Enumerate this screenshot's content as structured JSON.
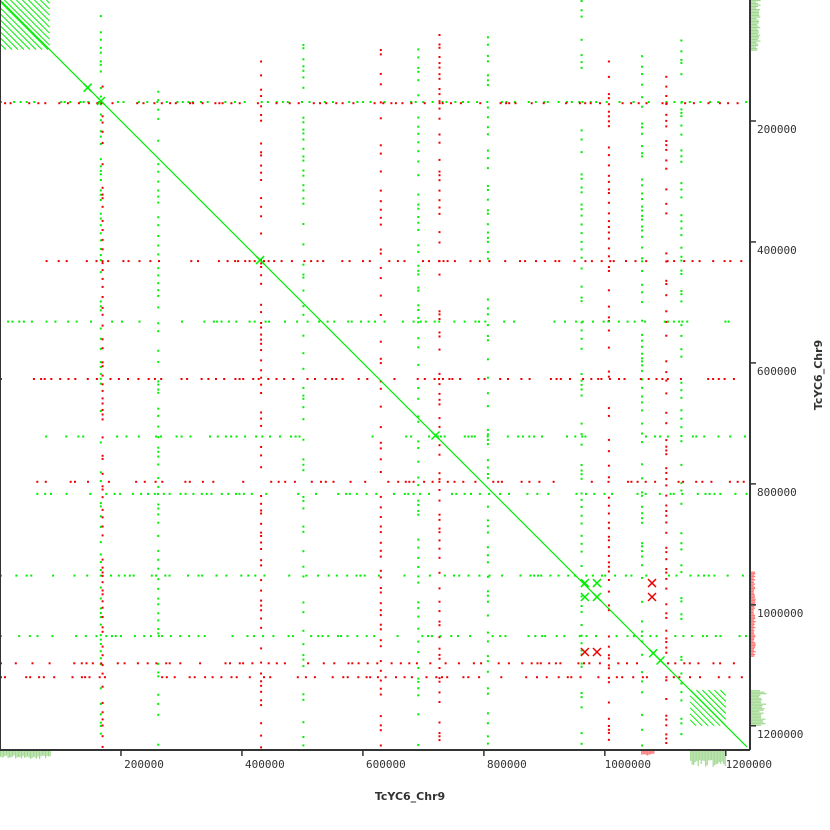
{
  "chart_data": {
    "type": "scatter",
    "subtype": "dot-plot self alignment",
    "xlabel": "TcYC6_Chr9",
    "ylabel": "TcYC6_Chr9",
    "xlim": [
      0,
      1240000
    ],
    "ylim": [
      0,
      1240000
    ],
    "y_inverted": true,
    "xticks": [
      "200000",
      "400000",
      "600000",
      "800000",
      "1000000",
      "1200000"
    ],
    "yticks": [
      "200000",
      "400000",
      "600000",
      "800000",
      "1000000",
      "1200000"
    ],
    "tick_values": [
      200000,
      400000,
      600000,
      800000,
      1000000,
      1200000
    ],
    "colors": {
      "forward": "#00ee00",
      "reverse": "#ee0000",
      "hist_forward": "#a0d890",
      "hist_reverse": "#ff7070",
      "axis": "#333333"
    },
    "diagonal": [
      0,
      0,
      1235000,
      1235000
    ],
    "repeat_blocks": [
      {
        "x": [
          0,
          82000
        ],
        "y": [
          0,
          82000
        ],
        "color": "forward"
      },
      {
        "x": [
          1141000,
          1200000
        ],
        "y": [
          1141000,
          1200000
        ],
        "color": "forward"
      }
    ],
    "clusters": [
      {
        "x": 967000,
        "y": 964000,
        "color": "forward"
      },
      {
        "x": 987000,
        "y": 964000,
        "color": "forward"
      },
      {
        "x": 967000,
        "y": 987000,
        "color": "forward"
      },
      {
        "x": 987000,
        "y": 987000,
        "color": "forward"
      },
      {
        "x": 967000,
        "y": 1078000,
        "color": "reverse"
      },
      {
        "x": 987000,
        "y": 1078000,
        "color": "reverse"
      },
      {
        "x": 1078000,
        "y": 964000,
        "color": "reverse"
      },
      {
        "x": 1078000,
        "y": 987000,
        "color": "reverse"
      },
      {
        "x": 145000,
        "y": 145000,
        "color": "forward"
      },
      {
        "x": 167000,
        "y": 167000,
        "color": "forward"
      },
      {
        "x": 430000,
        "y": 430000,
        "color": "forward"
      },
      {
        "x": 720000,
        "y": 720000,
        "color": "forward"
      },
      {
        "x": 1080000,
        "y": 1080000,
        "color": "forward"
      },
      {
        "x": 1092000,
        "y": 1092000,
        "color": "forward"
      }
    ],
    "dotted_tracks": [
      {
        "axis": "v",
        "at": 165000,
        "from": 0,
        "to": 1235000,
        "color": "forward"
      },
      {
        "axis": "v",
        "at": 168000,
        "from": 130000,
        "to": 1235000,
        "color": "reverse"
      },
      {
        "axis": "h",
        "at": 167000,
        "from": 0,
        "to": 1235000,
        "color": "forward"
      },
      {
        "axis": "h",
        "at": 169000,
        "from": 0,
        "to": 1235000,
        "color": "reverse"
      },
      {
        "axis": "v",
        "at": 260000,
        "from": 150000,
        "to": 1235000,
        "color": "forward"
      },
      {
        "axis": "v",
        "at": 430000,
        "from": 100000,
        "to": 1235000,
        "color": "reverse"
      },
      {
        "axis": "v",
        "at": 500000,
        "from": 60000,
        "to": 1235000,
        "color": "forward"
      },
      {
        "axis": "v",
        "at": 628000,
        "from": 40000,
        "to": 1235000,
        "color": "reverse"
      },
      {
        "axis": "v",
        "at": 690000,
        "from": 80000,
        "to": 1235000,
        "color": "forward"
      },
      {
        "axis": "v",
        "at": 725000,
        "from": 40000,
        "to": 1235000,
        "color": "reverse"
      },
      {
        "axis": "v",
        "at": 805000,
        "from": 60000,
        "to": 1235000,
        "color": "forward"
      },
      {
        "axis": "v",
        "at": 960000,
        "from": 0,
        "to": 1235000,
        "color": "forward"
      },
      {
        "axis": "v",
        "at": 1005000,
        "from": 100000,
        "to": 1235000,
        "color": "reverse"
      },
      {
        "axis": "v",
        "at": 1060000,
        "from": 80000,
        "to": 1235000,
        "color": "forward"
      },
      {
        "axis": "v",
        "at": 1100000,
        "from": 120000,
        "to": 1235000,
        "color": "reverse"
      },
      {
        "axis": "v",
        "at": 1125000,
        "from": 60000,
        "to": 1235000,
        "color": "forward"
      },
      {
        "axis": "h",
        "at": 430000,
        "from": 60000,
        "to": 1235000,
        "color": "reverse"
      },
      {
        "axis": "h",
        "at": 530000,
        "from": 0,
        "to": 1235000,
        "color": "forward"
      },
      {
        "axis": "h",
        "at": 625000,
        "from": 0,
        "to": 1235000,
        "color": "reverse"
      },
      {
        "axis": "h",
        "at": 720000,
        "from": 60000,
        "to": 1235000,
        "color": "forward"
      },
      {
        "axis": "h",
        "at": 795000,
        "from": 60000,
        "to": 1235000,
        "color": "reverse"
      },
      {
        "axis": "h",
        "at": 815000,
        "from": 60000,
        "to": 1235000,
        "color": "forward"
      },
      {
        "axis": "h",
        "at": 950000,
        "from": 0,
        "to": 1235000,
        "color": "forward"
      },
      {
        "axis": "h",
        "at": 1050000,
        "from": 0,
        "to": 1235000,
        "color": "forward"
      },
      {
        "axis": "h",
        "at": 1095000,
        "from": 0,
        "to": 1235000,
        "color": "reverse"
      },
      {
        "axis": "h",
        "at": 1118000,
        "from": 0,
        "to": 1235000,
        "color": "reverse"
      }
    ],
    "margin_histogram_bottom": [
      {
        "from": 0,
        "to": 82000,
        "level": 0.5,
        "color": "forward"
      },
      {
        "from": 1141000,
        "to": 1200000,
        "level": 1.0,
        "color": "forward"
      },
      {
        "from": 1060000,
        "to": 1080000,
        "level": 0.3,
        "color": "reverse"
      }
    ],
    "margin_histogram_right": [
      {
        "from": 0,
        "to": 82000,
        "level": 0.6,
        "color": "forward"
      },
      {
        "from": 1141000,
        "to": 1200000,
        "level": 1.0,
        "color": "forward"
      },
      {
        "from": 945000,
        "to": 1085000,
        "level": 0.3,
        "color": "reverse"
      }
    ]
  }
}
